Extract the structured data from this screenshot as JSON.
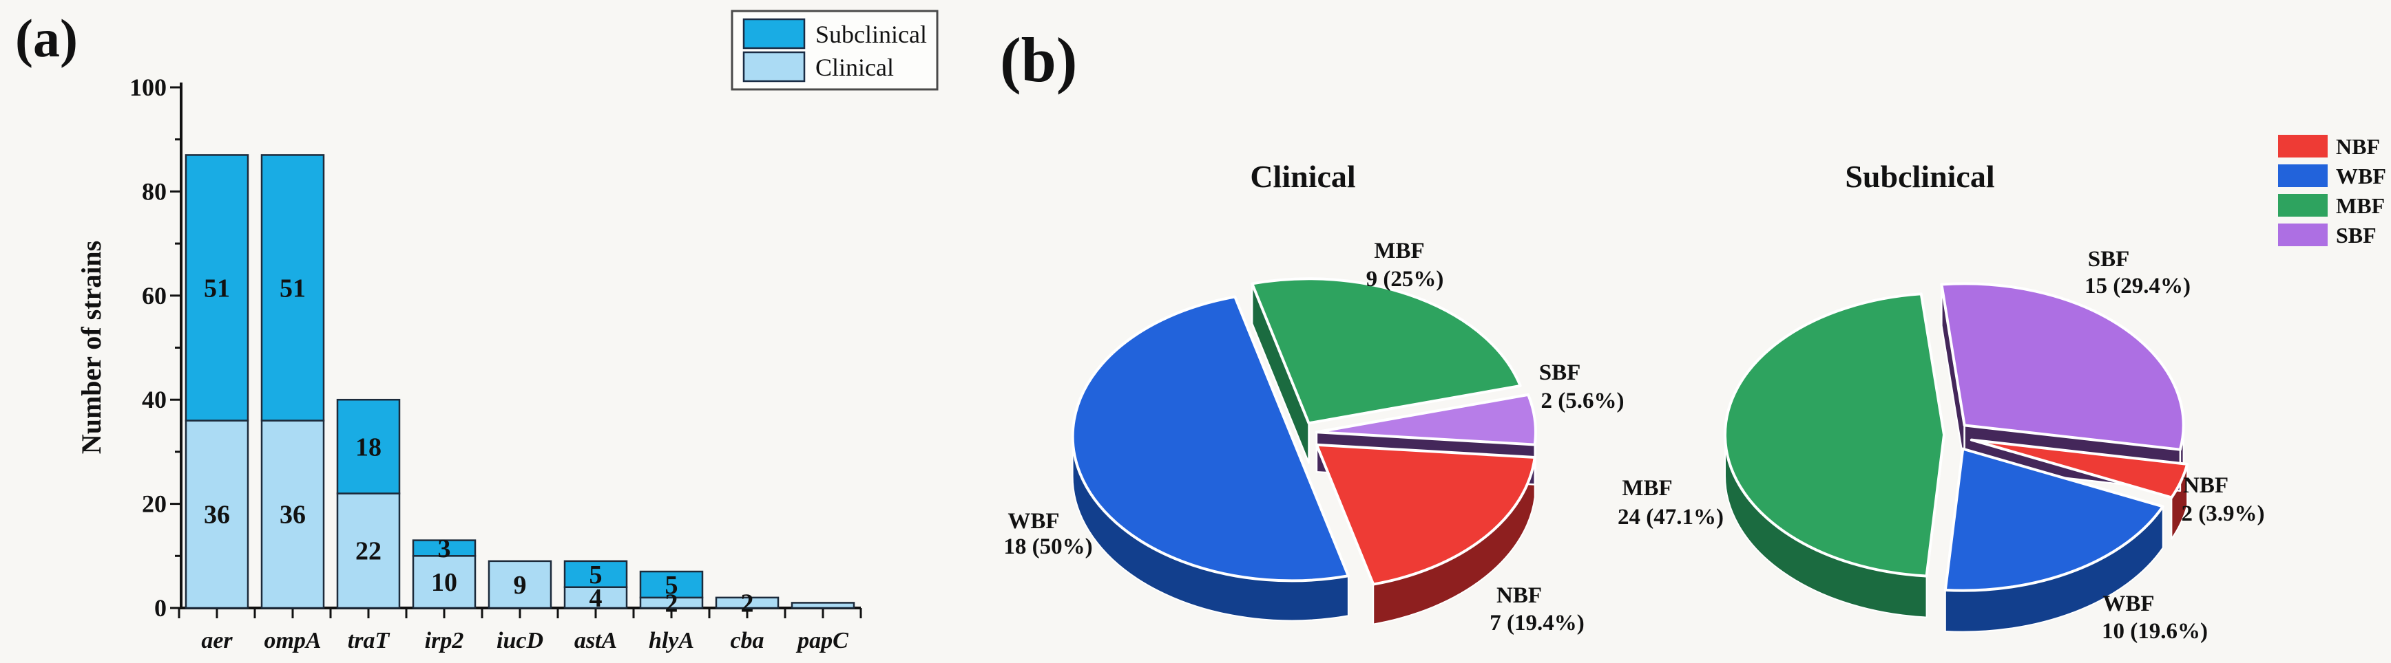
{
  "panel_a": {
    "label": "(a)",
    "ylabel": "Number of strains",
    "legend": [
      {
        "label": "Subclinical",
        "color": "#19ace4"
      },
      {
        "label": "Clinical",
        "color": "#abdbf4"
      }
    ]
  },
  "panel_b": {
    "label": "(b)",
    "titles": [
      "Clinical",
      "Subclinical"
    ],
    "legend": [
      {
        "label": "NBF",
        "color": "#ee3b35"
      },
      {
        "label": "WBF",
        "color": "#2263db"
      },
      {
        "label": "MBF",
        "color": "#2ea35f"
      },
      {
        "label": "SBF",
        "color": "#ad6fe3"
      }
    ]
  },
  "chart_data": [
    {
      "type": "bar",
      "stacked": true,
      "title": "",
      "xlabel": "",
      "ylabel": "Number of strains",
      "ylim": [
        0,
        100
      ],
      "yticks": [
        0,
        20,
        40,
        60,
        80,
        100
      ],
      "yticks_minor": [
        10,
        30,
        50,
        70,
        90
      ],
      "grid": false,
      "legend_position": "top-right",
      "categories": [
        "aer",
        "ompA",
        "traT",
        "irp2",
        "iucD",
        "astA",
        "hlyA",
        "cba",
        "papC"
      ],
      "series": [
        {
          "name": "Clinical",
          "color": "#abdbf4",
          "values": [
            36,
            36,
            22,
            10,
            9,
            4,
            2,
            2,
            1
          ]
        },
        {
          "name": "Subclinical",
          "color": "#19ace4",
          "values": [
            51,
            51,
            18,
            3,
            0,
            5,
            5,
            0,
            0
          ]
        }
      ]
    },
    {
      "type": "pie",
      "title": "Clinical",
      "total": 36,
      "slices": [
        {
          "name": "NBF",
          "value": 7,
          "label": "7 (19.4%)",
          "color": "#ee3b35"
        },
        {
          "name": "WBF",
          "value": 18,
          "label": "18 (50%)",
          "color": "#2263db"
        },
        {
          "name": "MBF",
          "value": 9,
          "label": "9 (25%)",
          "color": "#2ea35f"
        },
        {
          "name": "SBF",
          "value": 2,
          "label": "2 (5.6%)",
          "color": "#b77de8"
        }
      ]
    },
    {
      "type": "pie",
      "title": "Subclinical",
      "total": 51,
      "slices": [
        {
          "name": "NBF",
          "value": 2,
          "label": "2 (3.9%)",
          "color": "#ee3b35"
        },
        {
          "name": "WBF",
          "value": 10,
          "label": "10 (19.6%)",
          "color": "#2263db"
        },
        {
          "name": "MBF",
          "value": 24,
          "label": "24 (47.1%)",
          "color": "#2ea35f"
        },
        {
          "name": "SBF",
          "value": 15,
          "label": "15 (29.4%)",
          "color": "#ad6fe3"
        }
      ]
    }
  ]
}
